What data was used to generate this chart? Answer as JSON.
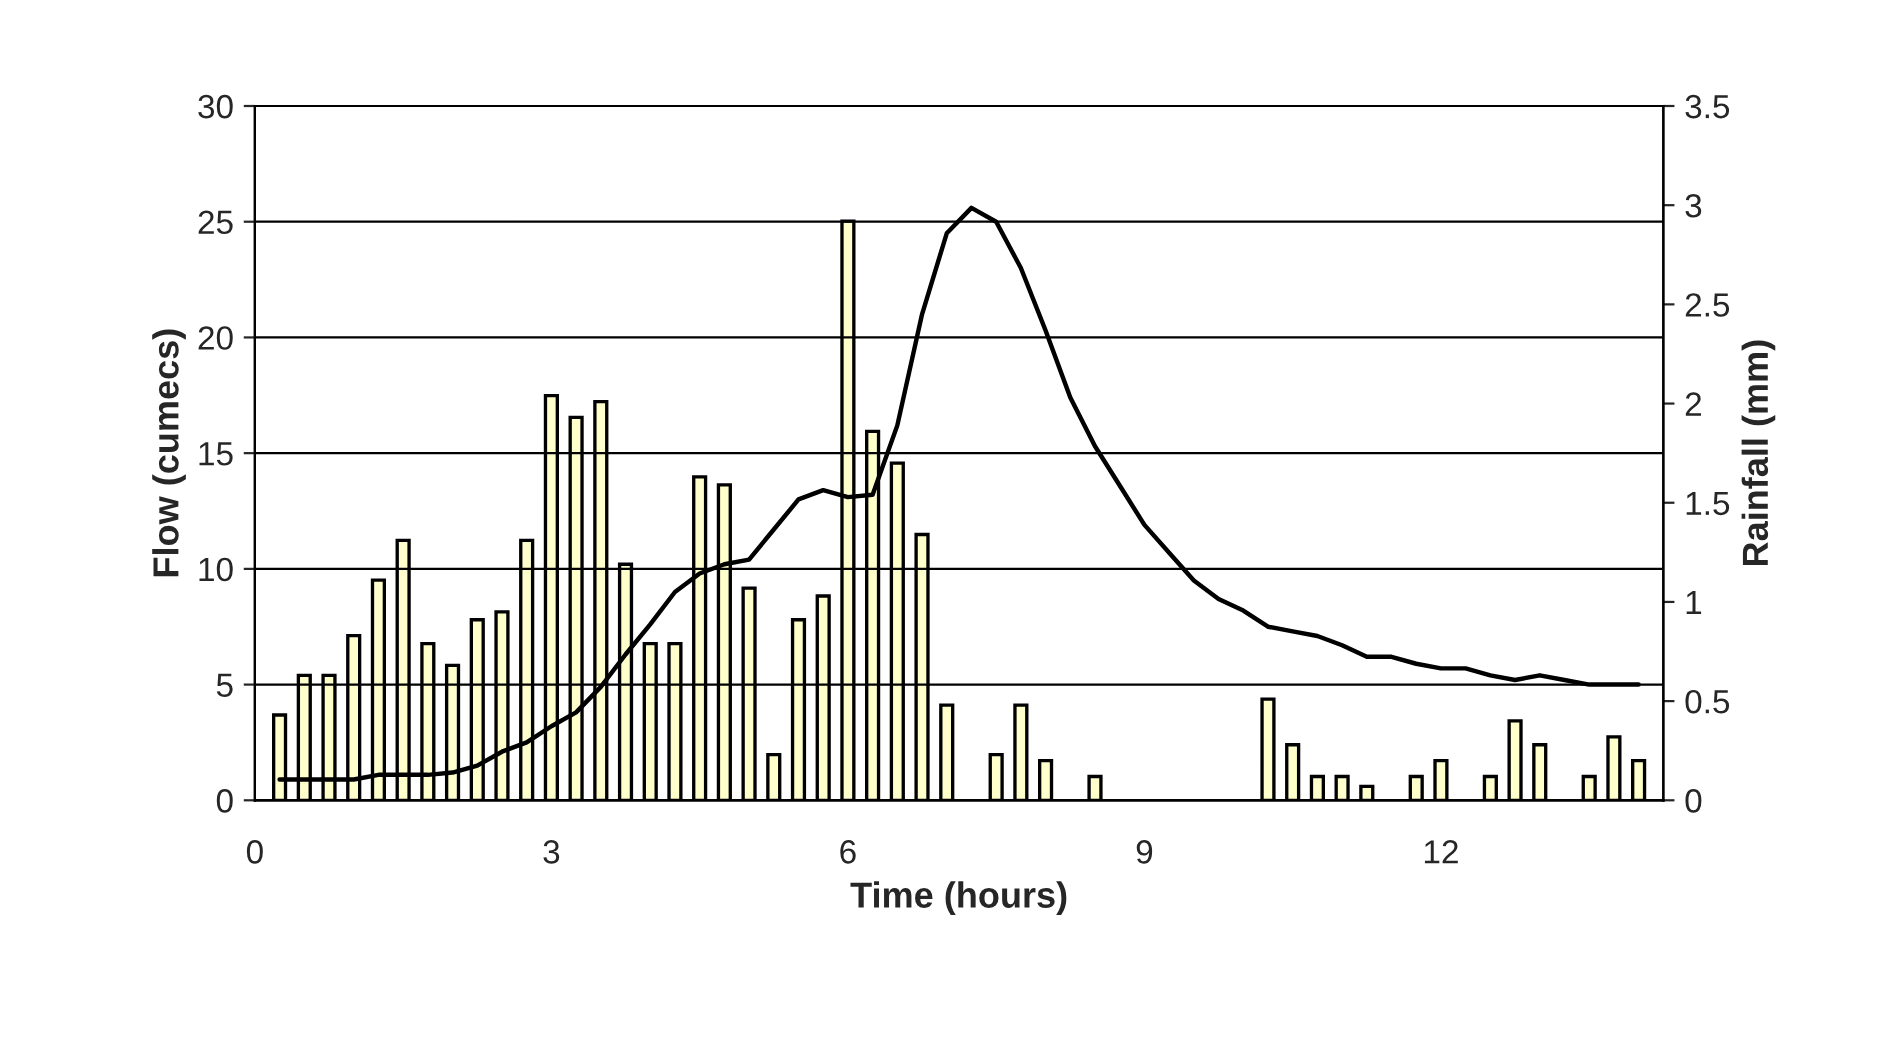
{
  "chart_data": {
    "type": "line",
    "xlabel": "Time (hours)",
    "ylabel": "Flow (cumecs)",
    "y2label": "Rainfall (mm)",
    "x": [
      0.25,
      0.5,
      0.75,
      1.0,
      1.25,
      1.5,
      1.75,
      2.0,
      2.25,
      2.5,
      2.75,
      3.0,
      3.25,
      3.5,
      3.75,
      4.0,
      4.25,
      4.5,
      4.75,
      5.0,
      5.25,
      5.5,
      5.75,
      6.0,
      6.25,
      6.5,
      6.75,
      7.0,
      7.25,
      7.5,
      7.75,
      8.0,
      8.25,
      8.5,
      8.75,
      9.0,
      9.25,
      9.5,
      9.75,
      10.0,
      10.25,
      10.5,
      10.75,
      11.0,
      11.25,
      11.5,
      11.75,
      12.0,
      12.25,
      12.5,
      12.75,
      13.0,
      13.25,
      13.5,
      13.75,
      14.0
    ],
    "series": [
      {
        "type": "bar",
        "axis": "y2",
        "color": "#ffffcc",
        "values": [
          0.43,
          0.63,
          0.63,
          0.83,
          1.11,
          1.31,
          0.79,
          0.68,
          0.91,
          0.95,
          1.31,
          2.04,
          1.93,
          2.01,
          1.19,
          0.79,
          0.79,
          1.63,
          1.59,
          1.07,
          0.23,
          0.91,
          1.03,
          2.92,
          1.86,
          1.7,
          1.34,
          0.48,
          null,
          0.23,
          0.48,
          0.2,
          null,
          0.12,
          null,
          null,
          null,
          null,
          null,
          null,
          0.51,
          0.28,
          0.12,
          0.12,
          0.07,
          null,
          0.12,
          0.2,
          null,
          0.12,
          0.4,
          0.28,
          null,
          0.12,
          0.32,
          0.2
        ]
      },
      {
        "axis": "y",
        "color": "#000000",
        "values": [
          0.9,
          0.9,
          0.9,
          0.9,
          1.1,
          1.1,
          1.1,
          1.2,
          1.5,
          2.1,
          2.5,
          3.2,
          3.8,
          4.9,
          6.3,
          7.6,
          9.0,
          9.8,
          10.2,
          10.4,
          11.7,
          13.0,
          13.4,
          13.1,
          13.2,
          16.2,
          21.0,
          24.5,
          25.6,
          25.0,
          23.0,
          20.3,
          17.4,
          15.3,
          13.6,
          11.9,
          10.7,
          9.5,
          8.7,
          8.2,
          7.5,
          7.3,
          7.1,
          6.7,
          6.2,
          6.2,
          5.9,
          5.7,
          5.7,
          5.4,
          5.2,
          5.4,
          5.2,
          5.0,
          5.0,
          5.0
        ]
      }
    ],
    "xlim": [
      0,
      14.25
    ],
    "xticks": [
      0,
      3,
      6,
      9,
      12
    ],
    "ylim": [
      0,
      30
    ],
    "yticks": [
      0,
      5,
      10,
      15,
      20,
      25,
      30
    ],
    "y2lim": [
      0,
      3.5
    ],
    "y2ticks": [
      0,
      0.5,
      1,
      1.5,
      2,
      2.5,
      3,
      3.5
    ],
    "grid": "y",
    "legend": false,
    "marker": "none",
    "line_style": "solid"
  }
}
